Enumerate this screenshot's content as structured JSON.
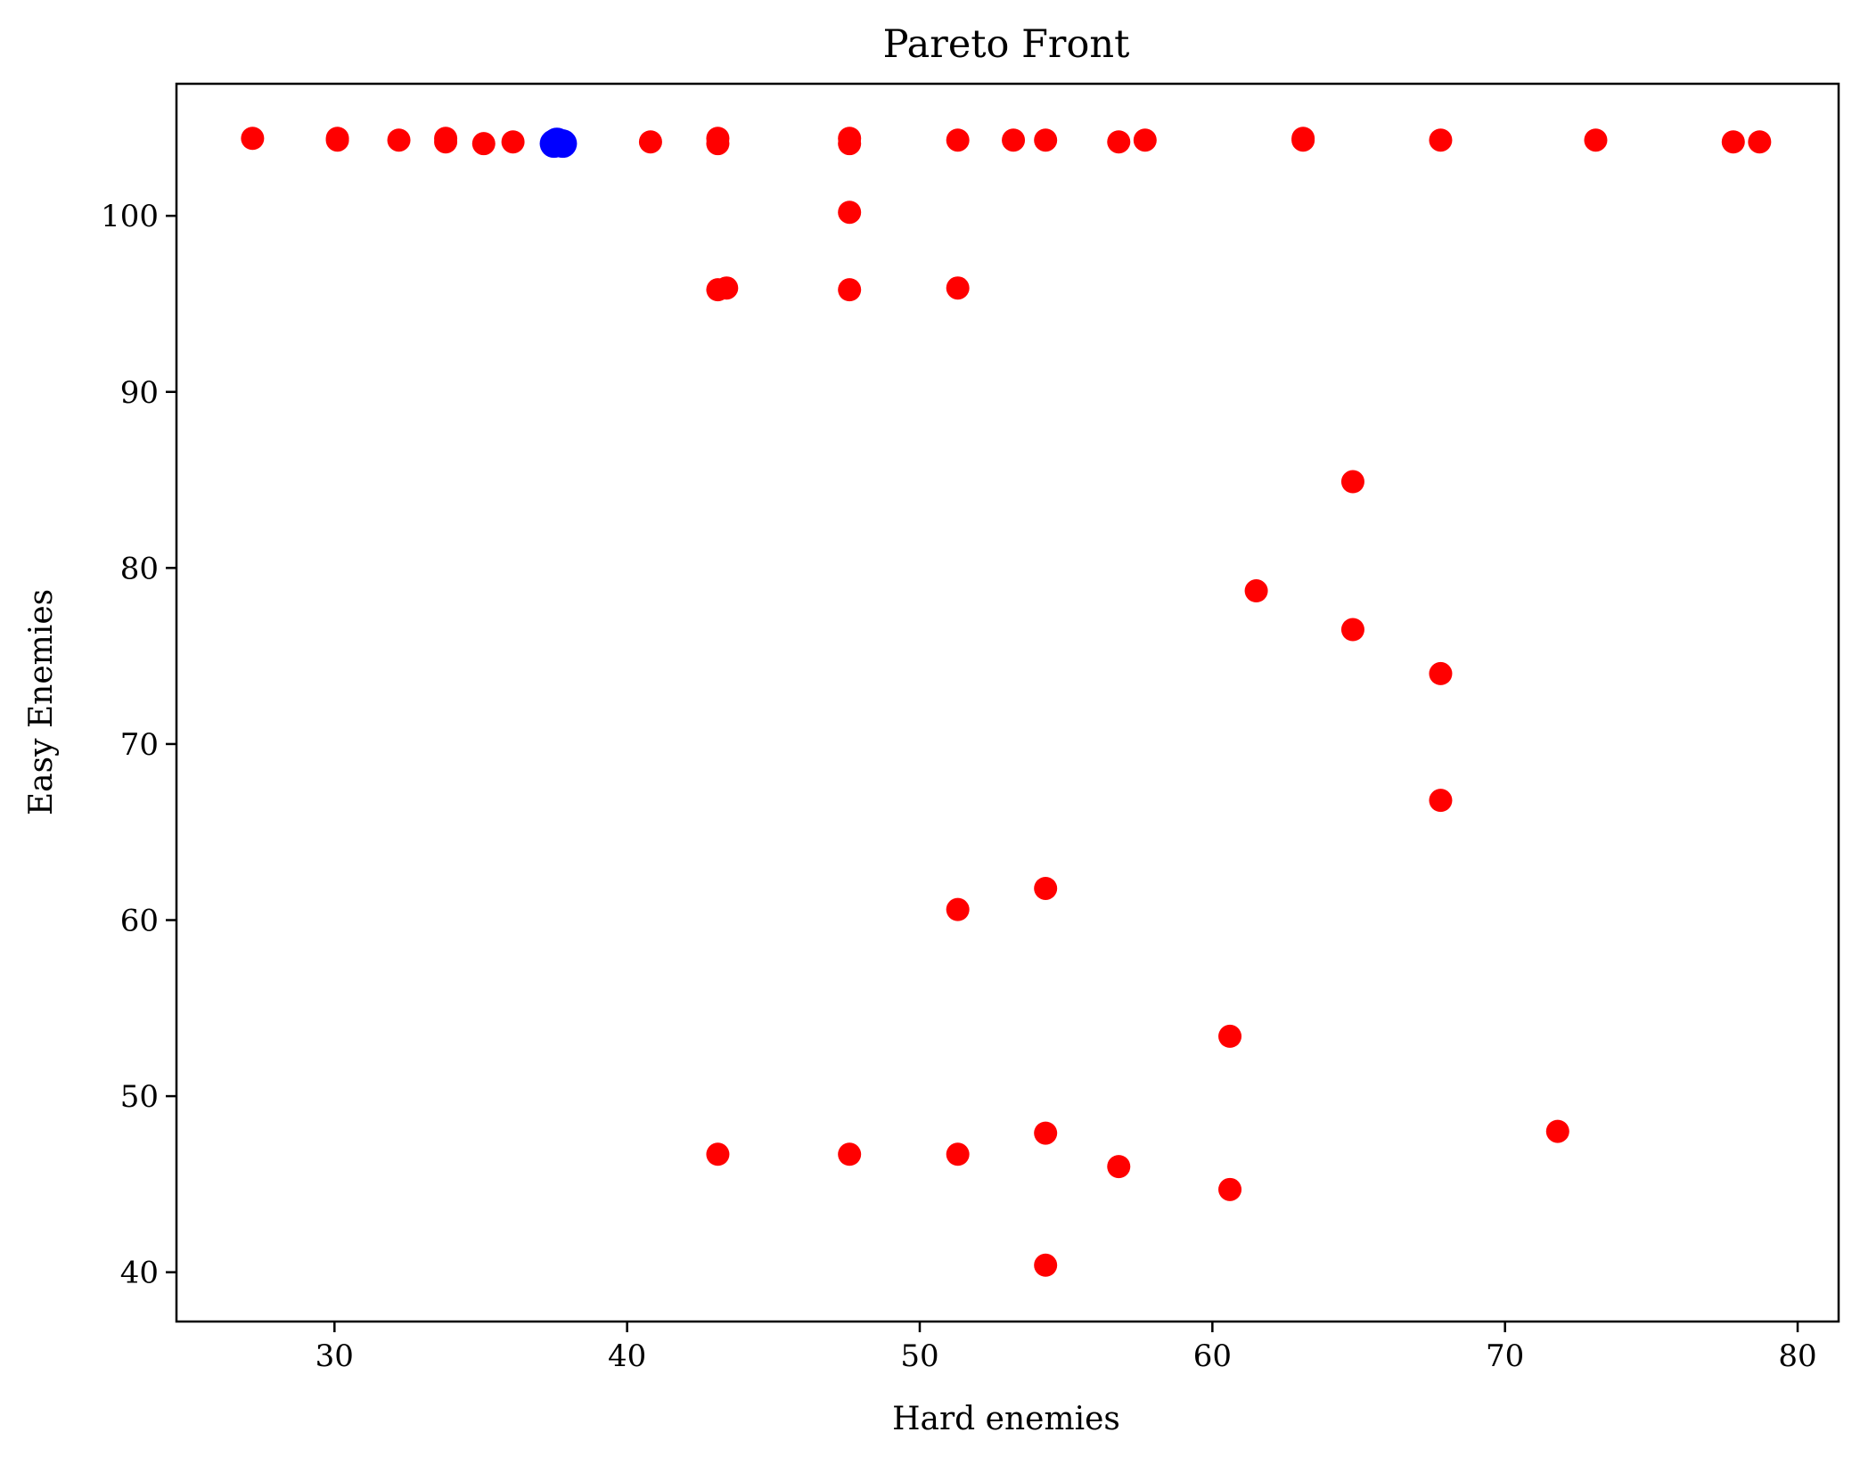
{
  "chart_data": {
    "type": "scatter",
    "title": "Pareto Front",
    "xlabel": "Hard enemies",
    "ylabel": "Easy Enemies",
    "xlim": [
      24.6,
      81.4
    ],
    "ylim": [
      37.2,
      107.5
    ],
    "xticks": [
      30,
      40,
      50,
      60,
      70,
      80
    ],
    "yticks": [
      40,
      50,
      60,
      70,
      80,
      90,
      100
    ],
    "grid": false,
    "legend": "none",
    "series": [
      {
        "color": "#ff0000",
        "marker": "circle",
        "points": [
          {
            "x": 27.2,
            "y": 104.4
          },
          {
            "x": 30.1,
            "y": 104.3
          },
          {
            "x": 30.1,
            "y": 104.4
          },
          {
            "x": 32.2,
            "y": 104.3
          },
          {
            "x": 33.8,
            "y": 104.2
          },
          {
            "x": 33.8,
            "y": 104.4
          },
          {
            "x": 35.1,
            "y": 104.1
          },
          {
            "x": 36.1,
            "y": 104.2
          },
          {
            "x": 40.8,
            "y": 104.2
          },
          {
            "x": 43.1,
            "y": 104.1
          },
          {
            "x": 43.1,
            "y": 104.4
          },
          {
            "x": 47.6,
            "y": 104.1
          },
          {
            "x": 47.6,
            "y": 104.4
          },
          {
            "x": 51.3,
            "y": 104.3
          },
          {
            "x": 53.2,
            "y": 104.3
          },
          {
            "x": 54.3,
            "y": 104.3
          },
          {
            "x": 56.8,
            "y": 104.2
          },
          {
            "x": 57.7,
            "y": 104.3
          },
          {
            "x": 63.1,
            "y": 104.3
          },
          {
            "x": 63.1,
            "y": 104.4
          },
          {
            "x": 67.8,
            "y": 104.3
          },
          {
            "x": 73.1,
            "y": 104.3
          },
          {
            "x": 77.8,
            "y": 104.2
          },
          {
            "x": 78.7,
            "y": 104.2
          },
          {
            "x": 47.6,
            "y": 100.2
          },
          {
            "x": 43.1,
            "y": 95.8
          },
          {
            "x": 43.4,
            "y": 95.9
          },
          {
            "x": 47.6,
            "y": 95.8
          },
          {
            "x": 51.3,
            "y": 95.9
          },
          {
            "x": 64.8,
            "y": 84.9
          },
          {
            "x": 61.5,
            "y": 78.7
          },
          {
            "x": 64.8,
            "y": 76.5
          },
          {
            "x": 67.8,
            "y": 74.0
          },
          {
            "x": 67.8,
            "y": 66.8
          },
          {
            "x": 54.3,
            "y": 61.8
          },
          {
            "x": 51.3,
            "y": 60.6
          },
          {
            "x": 60.6,
            "y": 53.4
          },
          {
            "x": 54.3,
            "y": 47.9
          },
          {
            "x": 71.8,
            "y": 48.0
          },
          {
            "x": 43.1,
            "y": 46.7
          },
          {
            "x": 47.6,
            "y": 46.7
          },
          {
            "x": 51.3,
            "y": 46.7
          },
          {
            "x": 56.8,
            "y": 46.0
          },
          {
            "x": 60.6,
            "y": 44.7
          },
          {
            "x": 54.3,
            "y": 40.4
          }
        ]
      },
      {
        "color": "#0000ff",
        "marker": "circle",
        "points": [
          {
            "x": 37.5,
            "y": 104.1
          },
          {
            "x": 37.6,
            "y": 104.2
          },
          {
            "x": 37.8,
            "y": 104.1
          }
        ]
      }
    ]
  }
}
